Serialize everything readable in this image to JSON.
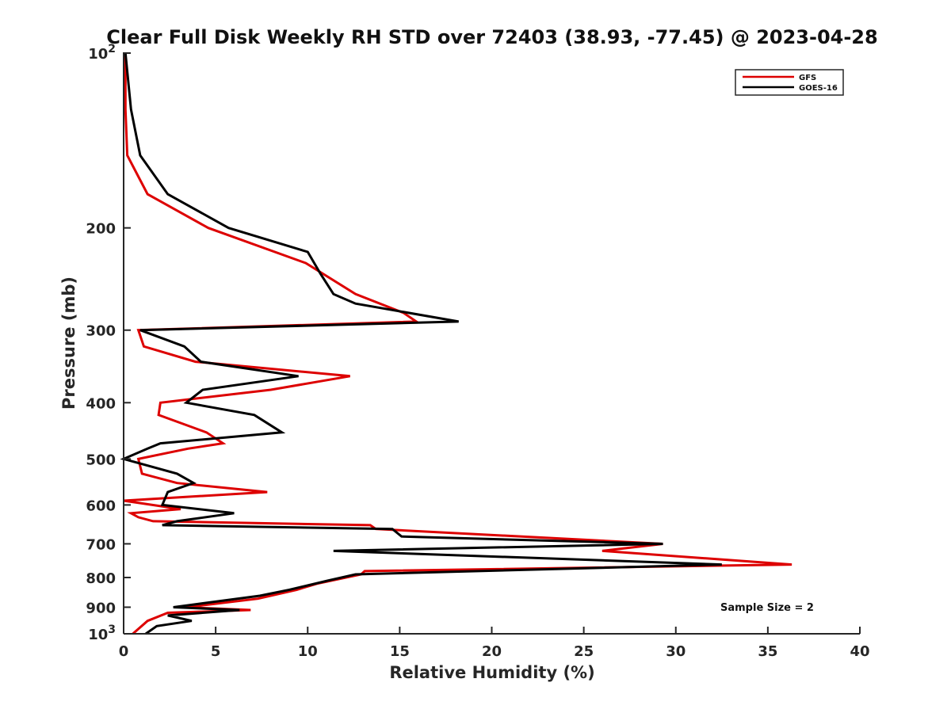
{
  "chart_data": {
    "type": "line",
    "title": "Clear Full Disk Weekly RH STD over 72403 (38.93, -77.45) @ 2023-04-28",
    "xlabel": "Relative Humidity (%)",
    "ylabel": "Pressure (mb)",
    "xlim": [
      0,
      40
    ],
    "ylim": [
      100,
      1000
    ],
    "y_scale": "log",
    "y_reversed": true,
    "x_ticks": [
      "0",
      "5",
      "10",
      "15",
      "20",
      "25",
      "30",
      "35",
      "40"
    ],
    "y_ticks": [
      {
        "value": 100,
        "label": "10",
        "sup": "2"
      },
      {
        "value": 200,
        "label": "200",
        "sup": ""
      },
      {
        "value": 300,
        "label": "300",
        "sup": ""
      },
      {
        "value": 400,
        "label": "400",
        "sup": ""
      },
      {
        "value": 500,
        "label": "500",
        "sup": ""
      },
      {
        "value": 600,
        "label": "600",
        "sup": ""
      },
      {
        "value": 700,
        "label": "700",
        "sup": ""
      },
      {
        "value": 800,
        "label": "800",
        "sup": ""
      },
      {
        "value": 900,
        "label": "900",
        "sup": ""
      },
      {
        "value": 1000,
        "label": "10",
        "sup": "3"
      }
    ],
    "legend_position": "top-right",
    "annotation": "Sample Size = 2",
    "grid": false,
    "series": [
      {
        "name": "GFS",
        "color": "#dd0000",
        "points": [
          [
            0.1,
            100
          ],
          [
            0.1,
            125
          ],
          [
            0.2,
            150
          ],
          [
            1.3,
            175
          ],
          [
            4.6,
            200
          ],
          [
            9.9,
            230
          ],
          [
            12.6,
            260
          ],
          [
            15.2,
            280
          ],
          [
            15.9,
            290
          ],
          [
            0.8,
            300
          ],
          [
            1.1,
            320
          ],
          [
            3.9,
            340
          ],
          [
            12.3,
            360
          ],
          [
            8.0,
            380
          ],
          [
            2.0,
            400
          ],
          [
            1.9,
            420
          ],
          [
            4.5,
            450
          ],
          [
            5.4,
            470
          ],
          [
            3.5,
            480
          ],
          [
            0.8,
            500
          ],
          [
            1.0,
            530
          ],
          [
            2.9,
            550
          ],
          [
            7.8,
            570
          ],
          [
            0.0,
            590
          ],
          [
            3.1,
            610
          ],
          [
            0.4,
            620
          ],
          [
            0.8,
            630
          ],
          [
            1.6,
            640
          ],
          [
            13.4,
            650
          ],
          [
            13.7,
            660
          ],
          [
            29.3,
            700
          ],
          [
            26.0,
            720
          ],
          [
            36.3,
            760
          ],
          [
            13.1,
            780
          ],
          [
            12.9,
            790
          ],
          [
            10.5,
            820
          ],
          [
            9.4,
            840
          ],
          [
            7.3,
            870
          ],
          [
            3.4,
            900
          ],
          [
            6.9,
            910
          ],
          [
            2.4,
            920
          ],
          [
            1.3,
            950
          ],
          [
            0.5,
            1000
          ]
        ]
      },
      {
        "name": "GOES-16",
        "color": "#000000",
        "points": [
          [
            0.1,
            100
          ],
          [
            0.4,
            125
          ],
          [
            0.9,
            150
          ],
          [
            2.4,
            175
          ],
          [
            5.7,
            200
          ],
          [
            10.0,
            220
          ],
          [
            10.7,
            240
          ],
          [
            11.4,
            260
          ],
          [
            12.6,
            270
          ],
          [
            18.2,
            290
          ],
          [
            0.9,
            300
          ],
          [
            3.3,
            320
          ],
          [
            4.2,
            340
          ],
          [
            9.5,
            360
          ],
          [
            4.3,
            380
          ],
          [
            3.4,
            400
          ],
          [
            7.1,
            420
          ],
          [
            8.6,
            450
          ],
          [
            2.0,
            470
          ],
          [
            1.3,
            480
          ],
          [
            0.0,
            500
          ],
          [
            2.9,
            530
          ],
          [
            3.8,
            550
          ],
          [
            2.4,
            570
          ],
          [
            2.1,
            600
          ],
          [
            6.0,
            620
          ],
          [
            2.9,
            640
          ],
          [
            2.1,
            650
          ],
          [
            14.6,
            660
          ],
          [
            15.1,
            680
          ],
          [
            29.3,
            700
          ],
          [
            11.4,
            720
          ],
          [
            32.5,
            760
          ],
          [
            12.6,
            790
          ],
          [
            11.1,
            810
          ],
          [
            9.0,
            840
          ],
          [
            7.4,
            860
          ],
          [
            2.7,
            900
          ],
          [
            6.3,
            910
          ],
          [
            2.4,
            930
          ],
          [
            3.7,
            950
          ],
          [
            1.8,
            970
          ],
          [
            1.2,
            1000
          ]
        ]
      }
    ]
  }
}
